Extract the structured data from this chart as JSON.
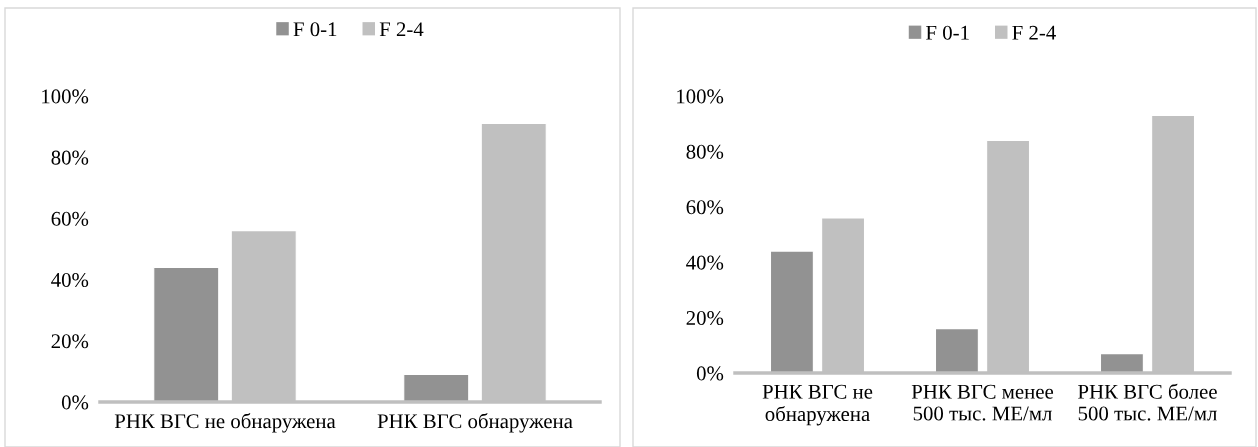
{
  "chart_data": [
    {
      "type": "bar",
      "categories": [
        "РНК ВГС не обнаружена",
        "РНК ВГС обнаружена"
      ],
      "series": [
        {
          "name": "F 0-1",
          "color": "#929292",
          "values": [
            44,
            9
          ]
        },
        {
          "name": "F 2-4",
          "color": "#c0c0c0",
          "values": [
            56,
            91
          ]
        }
      ],
      "ylim": [
        0,
        100
      ],
      "yticks": [
        {
          "value": 0,
          "label": "0%"
        },
        {
          "value": 20,
          "label": "20%"
        },
        {
          "value": 40,
          "label": "40%"
        },
        {
          "value": 60,
          "label": "60%"
        },
        {
          "value": 80,
          "label": "80%"
        },
        {
          "value": 100,
          "label": "100%"
        }
      ],
      "grid": false,
      "legend": "top"
    },
    {
      "type": "bar",
      "categories": [
        "РНК ВГС не\nобнаружена",
        "РНК ВГС менее\n500 тыс. МЕ/мл",
        "РНК ВГС более\n500 тыс. МЕ/мл"
      ],
      "series": [
        {
          "name": "F 0-1",
          "color": "#929292",
          "values": [
            44,
            16,
            7
          ]
        },
        {
          "name": "F 2-4",
          "color": "#c0c0c0",
          "values": [
            56,
            84,
            93
          ]
        }
      ],
      "ylim": [
        0,
        100
      ],
      "yticks": [
        {
          "value": 0,
          "label": "0%"
        },
        {
          "value": 20,
          "label": "20%"
        },
        {
          "value": 40,
          "label": "40%"
        },
        {
          "value": 60,
          "label": "60%"
        },
        {
          "value": 80,
          "label": "80%"
        },
        {
          "value": 100,
          "label": "100%"
        }
      ],
      "grid": false,
      "legend": "top"
    }
  ]
}
